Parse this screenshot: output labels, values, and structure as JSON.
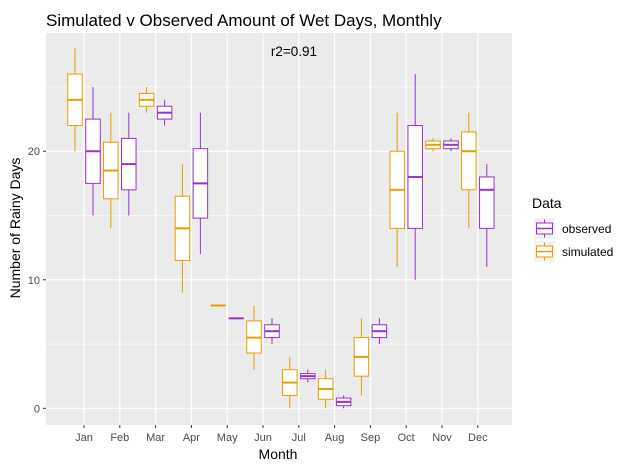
{
  "chart_data": {
    "type": "boxplot",
    "title": "Simulated v Observed Amount of Wet Days, Monthly",
    "annotation": "r2=0.91",
    "xlabel": "Month",
    "ylabel": "Number of Rainy Days",
    "categories": [
      "Jan",
      "Feb",
      "Mar",
      "Apr",
      "May",
      "Jun",
      "Jul",
      "Aug",
      "Sep",
      "Oct",
      "Nov",
      "Dec"
    ],
    "ylim": [
      -1.3,
      29.2
    ],
    "yticks": [
      0,
      10,
      20
    ],
    "grid": true,
    "legend": {
      "title": "Data",
      "placement": "right"
    },
    "series": [
      {
        "name": "simulated",
        "color": "#E69F00",
        "boxes": [
          {
            "min": 20,
            "q1": 22,
            "median": 24,
            "q3": 26,
            "max": 28
          },
          {
            "min": 14,
            "q1": 16.3,
            "median": 18.5,
            "q3": 20.7,
            "max": 23
          },
          {
            "min": 23,
            "q1": 23.5,
            "median": 24,
            "q3": 24.5,
            "max": 25
          },
          {
            "min": 9,
            "q1": 11.5,
            "median": 14,
            "q3": 16.5,
            "max": 19
          },
          {
            "min": 8,
            "q1": 8,
            "median": 8,
            "q3": 8,
            "max": 8
          },
          {
            "min": 3,
            "q1": 4.3,
            "median": 5.5,
            "q3": 6.8,
            "max": 8
          },
          {
            "min": 0,
            "q1": 1,
            "median": 2,
            "q3": 3,
            "max": 4
          },
          {
            "min": 0,
            "q1": 0.7,
            "median": 1.5,
            "q3": 2.3,
            "max": 3
          },
          {
            "min": 1,
            "q1": 2.5,
            "median": 4,
            "q3": 5.5,
            "max": 7
          },
          {
            "min": 11,
            "q1": 14,
            "median": 17,
            "q3": 20,
            "max": 23
          },
          {
            "min": 20,
            "q1": 20.2,
            "median": 20.5,
            "q3": 20.8,
            "max": 21
          },
          {
            "min": 14,
            "q1": 17,
            "median": 20,
            "q3": 21.5,
            "max": 23
          }
        ]
      },
      {
        "name": "observed",
        "color": "#9932CC",
        "boxes": [
          {
            "min": 15,
            "q1": 17.5,
            "median": 20,
            "q3": 22.5,
            "max": 25
          },
          {
            "min": 15,
            "q1": 17,
            "median": 19,
            "q3": 21,
            "max": 23
          },
          {
            "min": 22,
            "q1": 22.5,
            "median": 23,
            "q3": 23.5,
            "max": 24
          },
          {
            "min": 12,
            "q1": 14.8,
            "median": 17.5,
            "q3": 20.2,
            "max": 23
          },
          {
            "min": 7,
            "q1": 7,
            "median": 7,
            "q3": 7,
            "max": 7
          },
          {
            "min": 5,
            "q1": 5.5,
            "median": 6,
            "q3": 6.5,
            "max": 7
          },
          {
            "min": 2,
            "q1": 2.3,
            "median": 2.5,
            "q3": 2.7,
            "max": 3
          },
          {
            "min": 0,
            "q1": 0.2,
            "median": 0.5,
            "q3": 0.8,
            "max": 1
          },
          {
            "min": 5,
            "q1": 5.5,
            "median": 6,
            "q3": 6.5,
            "max": 7
          },
          {
            "min": 10,
            "q1": 14,
            "median": 18,
            "q3": 22,
            "max": 26
          },
          {
            "min": 20,
            "q1": 20.2,
            "median": 20.5,
            "q3": 20.8,
            "max": 21
          },
          {
            "min": 11,
            "q1": 14,
            "median": 17,
            "q3": 18,
            "max": 19
          }
        ]
      }
    ]
  }
}
